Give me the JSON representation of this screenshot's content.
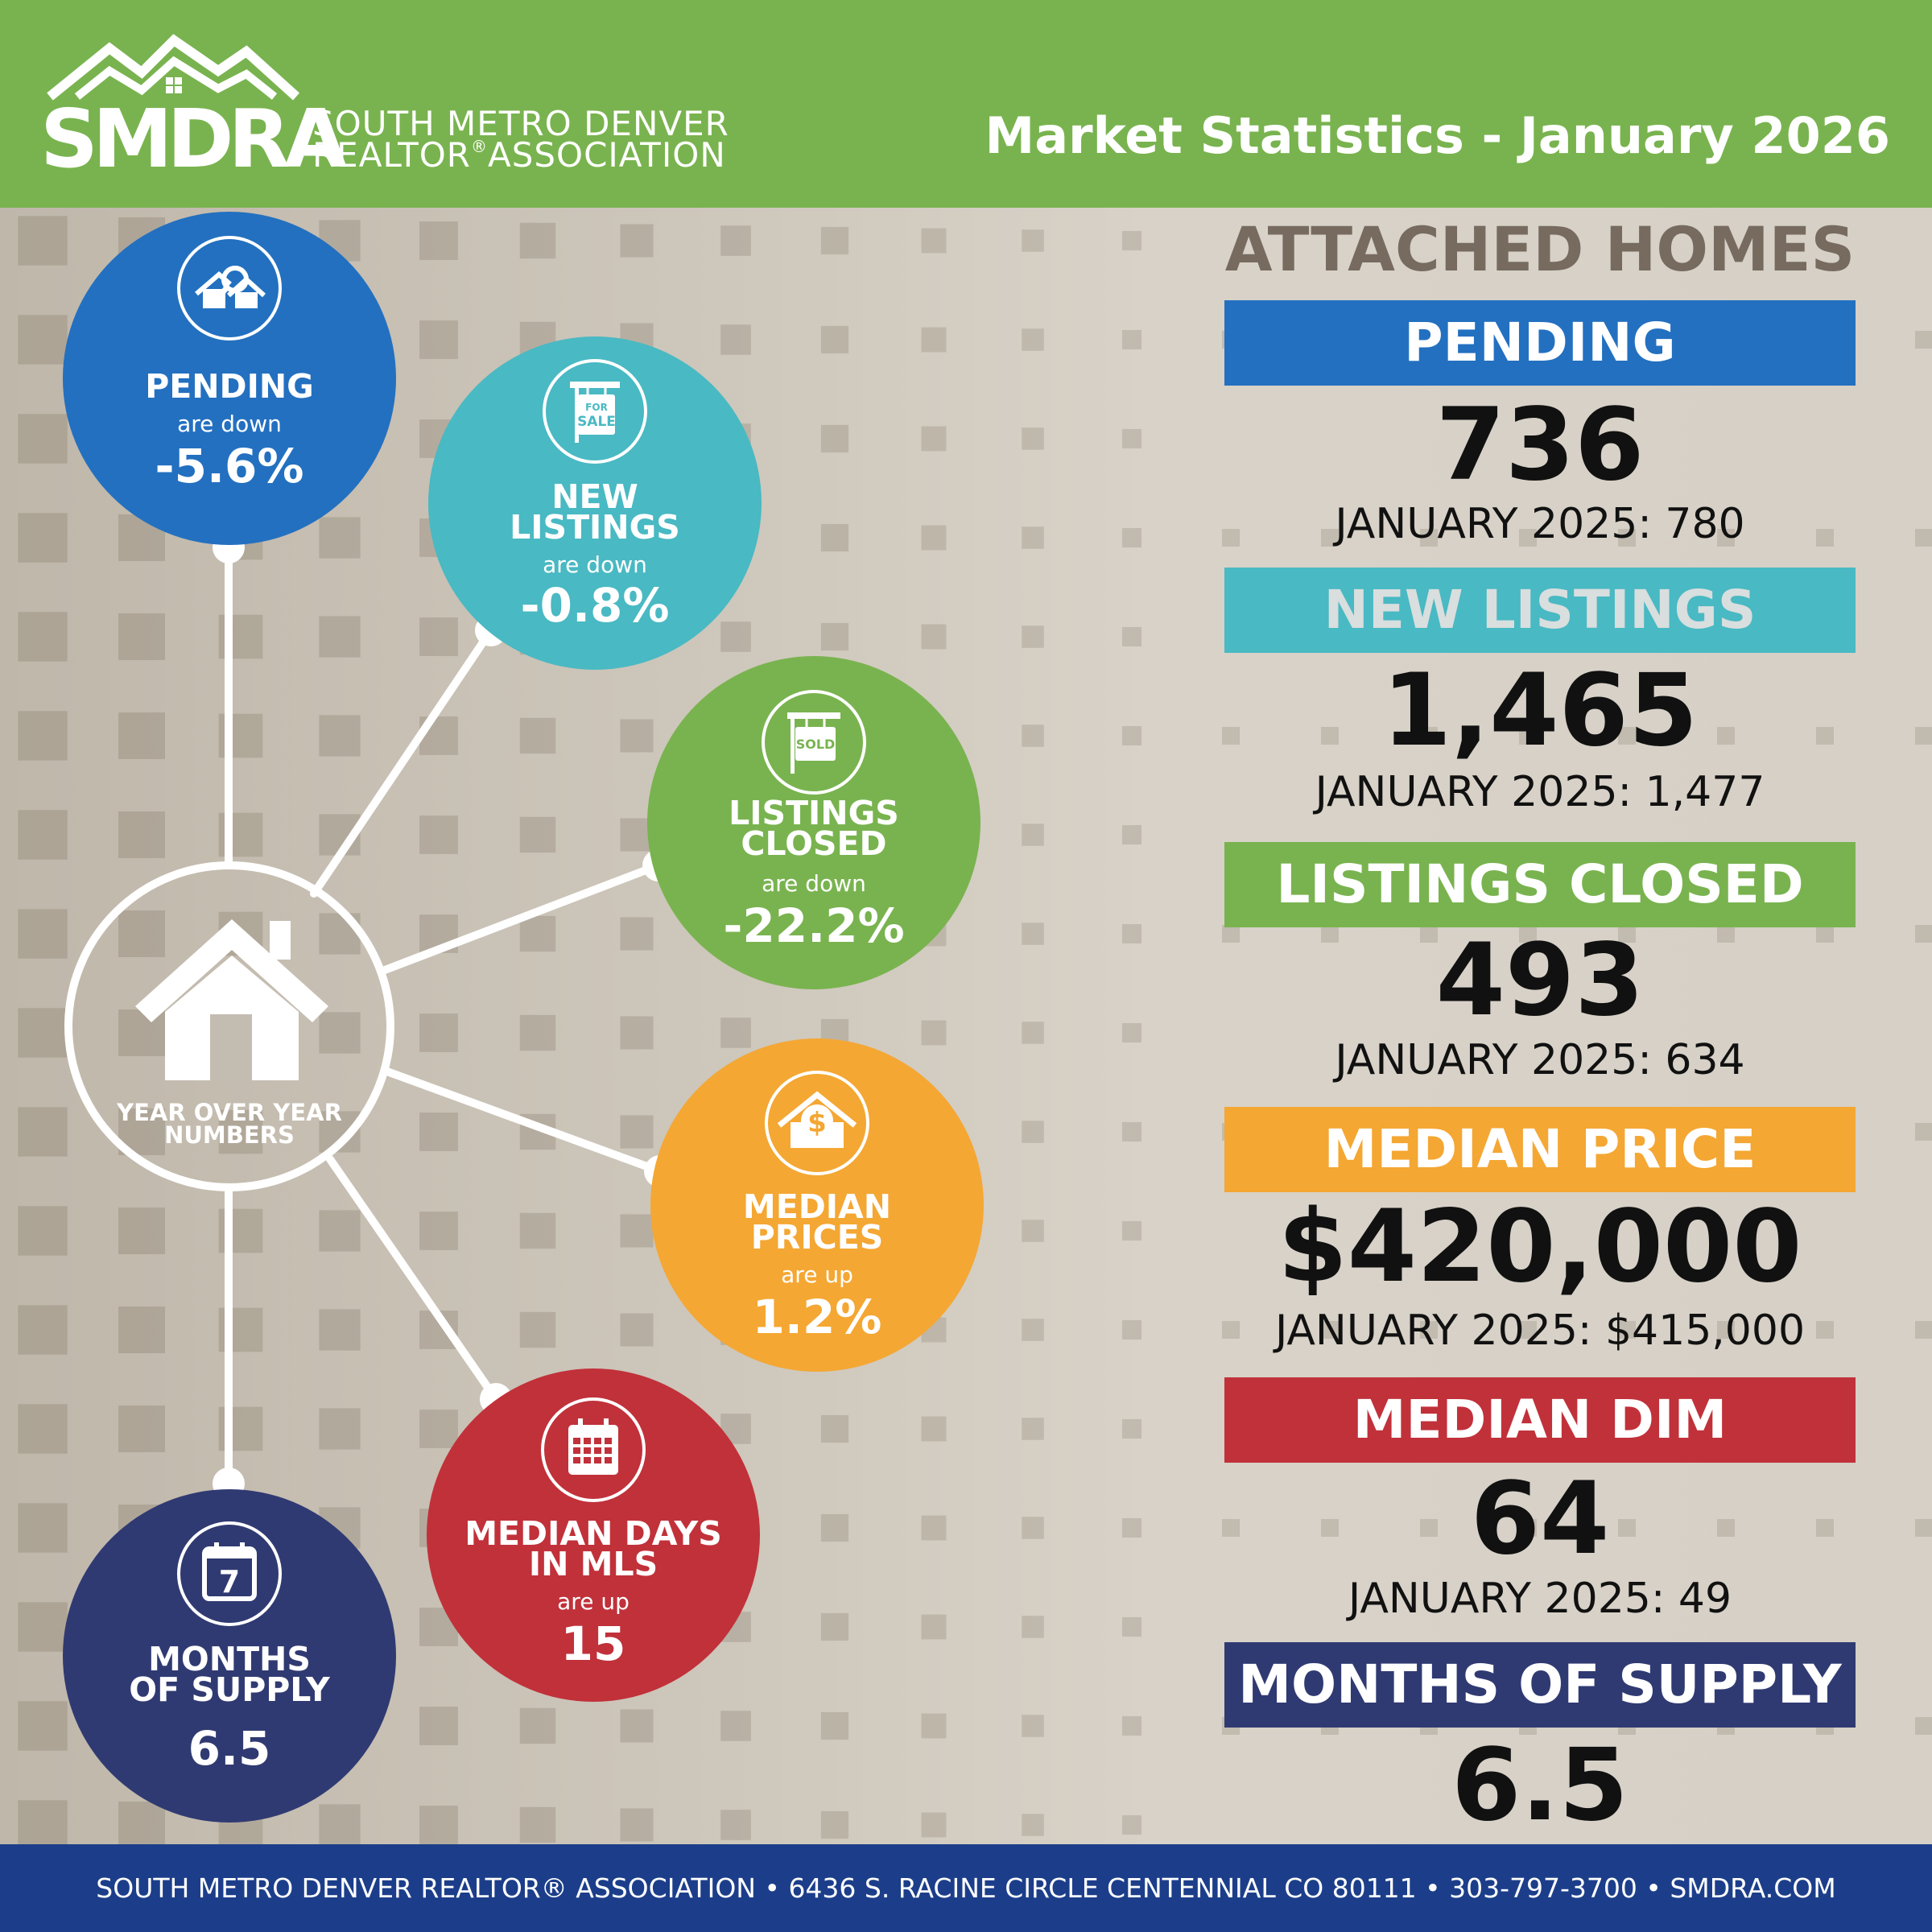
{
  "header": {
    "logo_abbr": "SMDRA",
    "logo_line1": "SOUTH METRO DENVER",
    "logo_line2a": "REALTOR",
    "logo_line2_reg": "®",
    "logo_line2b": "ASSOCIATION",
    "title": "Market Statistics - January 2026"
  },
  "hub": {
    "label_line1": "YEAR OVER YEAR",
    "label_line2": "NUMBERS",
    "icon": "house-icon"
  },
  "circles": {
    "pending": {
      "title1": "PENDING",
      "sub": "are down",
      "value": "-5.6%",
      "color": "#2370c0",
      "icon": "house-search-icon"
    },
    "new_listings": {
      "title1": "NEW",
      "title2": "LISTINGS",
      "sub": "are down",
      "value": "-0.8%",
      "color": "#49b9c3",
      "icon": "for-sale-sign-icon",
      "icon_text1": "FOR",
      "icon_text2": "SALE"
    },
    "listings_closed": {
      "title1": "LISTINGS",
      "title2": "CLOSED",
      "sub": "are down",
      "value": "-22.2%",
      "color": "#79b34f",
      "icon": "sold-sign-icon",
      "icon_text": "SOLD"
    },
    "median_prices": {
      "title1": "MEDIAN",
      "title2": "PRICES",
      "sub": "are up",
      "value": "1.2%",
      "color": "#f4a733",
      "icon": "house-dollar-icon",
      "icon_text": "$"
    },
    "median_days": {
      "title1": "MEDIAN DAYS",
      "title2": "IN MLS",
      "sub": "are up",
      "value": "15",
      "color": "#c1313a",
      "icon": "calendar-icon"
    },
    "months_supply": {
      "title1": "MONTHS",
      "title2": "OF SUPPLY",
      "value": "6.5",
      "color": "#303a72",
      "icon": "calendar-7-icon",
      "icon_text": "7"
    }
  },
  "stats": {
    "heading": "ATTACHED HOMES",
    "rows": [
      {
        "label": "PENDING",
        "value": "736",
        "prev": "JANUARY 2025: 780",
        "color": "#2370c0",
        "label_color": "#ffffff"
      },
      {
        "label": "NEW LISTINGS",
        "value": "1,465",
        "prev": "JANUARY 2025: 1,477",
        "color": "#49b9c3",
        "label_color": "#d9dede"
      },
      {
        "label": "LISTINGS CLOSED",
        "value": "493",
        "prev": "JANUARY 2025: 634",
        "color": "#79b34f",
        "label_color": "#ffffff"
      },
      {
        "label": "MEDIAN PRICE",
        "value": "$420,000",
        "prev": "JANUARY 2025: $415,000",
        "color": "#f4a733",
        "label_color": "#ffffff"
      },
      {
        "label": "MEDIAN DIM",
        "value": "64",
        "prev": "JANUARY 2025: 49",
        "color": "#c1313a",
        "label_color": "#ffffff"
      },
      {
        "label": "MONTHS OF SUPPLY",
        "value": "6.5",
        "prev": "",
        "color": "#303a72",
        "label_color": "#ffffff"
      }
    ]
  },
  "footer": {
    "text": "SOUTH METRO DENVER REALTOR® ASSOCIATION • 6436 S. RACINE CIRCLE CENTENNIAL CO 80111 •  303-797-3700 • SMDRA.COM"
  }
}
